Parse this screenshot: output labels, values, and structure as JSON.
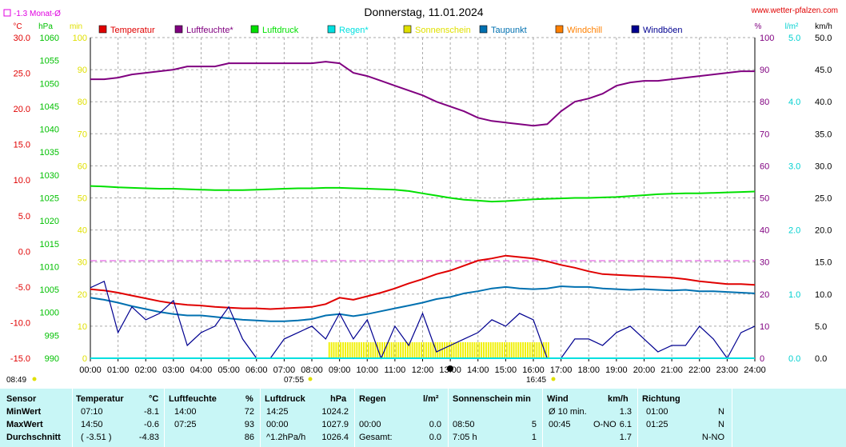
{
  "header": {
    "title": "Donnerstag, 11.01.2024",
    "site": "www.wetter-pfalzen.com",
    "monat_label": "-1.3 Monat-Ø"
  },
  "axis_units": {
    "temp": "°C",
    "hpa": "hPa",
    "min": "min",
    "pct": "%",
    "lqm": "l/m²",
    "kmh": "km/h"
  },
  "legend": [
    {
      "label": "Temperatur",
      "color": "#e00000"
    },
    {
      "label": "Luftfeuchte*",
      "color": "#800080"
    },
    {
      "label": "Luftdruck",
      "color": "#00e000"
    },
    {
      "label": "Regen*",
      "color": "#00e0e0"
    },
    {
      "label": "Sonnenschein",
      "color": "#e0e000"
    },
    {
      "label": "Taupunkt",
      "color": "#0070b0"
    },
    {
      "label": "Windchill",
      "color": "#ff8000"
    },
    {
      "label": "Windböen",
      "color": "#000090"
    }
  ],
  "ticks": {
    "temp": [
      "30.0",
      "25.0",
      "20.0",
      "15.0",
      "10.0",
      "5.0",
      "0.0",
      "-5.0",
      "-10.0",
      "-15.0"
    ],
    "hpa": [
      "1060",
      "1055",
      "1050",
      "1045",
      "1040",
      "1035",
      "1030",
      "1025",
      "1020",
      "1015",
      "1010",
      "1005",
      "1000",
      "995",
      "990"
    ],
    "min": [
      "100",
      "90",
      "80",
      "70",
      "60",
      "50",
      "40",
      "30",
      "20",
      "10",
      "0"
    ],
    "pct": [
      "100",
      "90",
      "80",
      "70",
      "60",
      "50",
      "40",
      "30",
      "20",
      "10",
      "0"
    ],
    "lqm": [
      "5.0",
      "4.0",
      "3.0",
      "2.0",
      "1.0",
      "0.0"
    ],
    "kmh": [
      "50.0",
      "45.0",
      "40.0",
      "35.0",
      "30.0",
      "25.0",
      "20.0",
      "15.0",
      "10.0",
      "5.0",
      "0.0"
    ],
    "x": [
      "00:00",
      "01:00",
      "02:00",
      "03:00",
      "04:00",
      "05:00",
      "06:00",
      "07:00",
      "08:00",
      "09:00",
      "10:00",
      "11:00",
      "12:00",
      "13:00",
      "14:00",
      "15:00",
      "16:00",
      "17:00",
      "18:00",
      "19:00",
      "20:00",
      "21:00",
      "22:00",
      "23:00",
      "24:00"
    ]
  },
  "sun_marks": {
    "left_time": "08:49",
    "sunrise": "07:55",
    "sunset": "16:45"
  },
  "chart_data": {
    "type": "line",
    "title": "Donnerstag, 11.01.2024",
    "x": [
      0,
      0.5,
      1,
      1.5,
      2,
      2.5,
      3,
      3.5,
      4,
      4.5,
      5,
      5.5,
      6,
      6.5,
      7,
      7.5,
      8,
      8.5,
      9,
      9.5,
      10,
      10.5,
      11,
      11.5,
      12,
      12.5,
      13,
      13.5,
      14,
      14.5,
      15,
      15.5,
      16,
      16.5,
      17,
      17.5,
      18,
      18.5,
      19,
      19.5,
      20,
      20.5,
      21,
      21.5,
      22,
      22.5,
      23,
      23.5,
      24
    ],
    "xlim": [
      0,
      24
    ],
    "series": [
      {
        "name": "Temperatur",
        "axis": "°C",
        "ylim": [
          -15,
          30
        ],
        "values": [
          -5.3,
          -5.5,
          -5.8,
          -6.2,
          -6.6,
          -7.0,
          -7.3,
          -7.5,
          -7.6,
          -7.8,
          -7.9,
          -8.0,
          -8.0,
          -8.1,
          -8.0,
          -7.9,
          -7.8,
          -7.4,
          -6.5,
          -6.8,
          -6.3,
          -5.8,
          -5.2,
          -4.5,
          -3.9,
          -3.2,
          -2.7,
          -2.0,
          -1.3,
          -1.0,
          -0.6,
          -0.8,
          -1.0,
          -1.4,
          -1.9,
          -2.3,
          -2.8,
          -3.2,
          -3.3,
          -3.4,
          -3.5,
          -3.6,
          -3.7,
          -3.9,
          -4.2,
          -4.4,
          -4.6,
          -4.6,
          -4.7
        ]
      },
      {
        "name": "Luftfeuchte*",
        "axis": "%",
        "ylim": [
          0,
          100
        ],
        "values": [
          87,
          87,
          87.5,
          88.5,
          89,
          89.5,
          90,
          91,
          91,
          91,
          92,
          92,
          92,
          92,
          92,
          92,
          92,
          92.5,
          92,
          89,
          88,
          86.5,
          85,
          83.5,
          82,
          80,
          78.5,
          77,
          75,
          74,
          73.5,
          73,
          72.5,
          73,
          77,
          80,
          81,
          82.5,
          85,
          86,
          86.5,
          86.5,
          87,
          87.5,
          88,
          88.5,
          89,
          89.5,
          89.5
        ]
      },
      {
        "name": "Luftdruck",
        "axis": "hPa",
        "ylim": [
          990,
          1060
        ],
        "values": [
          1027.6,
          1027.5,
          1027.3,
          1027.2,
          1027.1,
          1027.0,
          1027.0,
          1026.9,
          1026.8,
          1026.7,
          1026.7,
          1026.7,
          1026.8,
          1026.9,
          1027.0,
          1027.1,
          1027.1,
          1027.2,
          1027.2,
          1027.1,
          1027.0,
          1026.9,
          1026.8,
          1026.5,
          1026.0,
          1025.5,
          1025.0,
          1024.6,
          1024.4,
          1024.2,
          1024.3,
          1024.5,
          1024.7,
          1024.8,
          1024.9,
          1025.0,
          1025.0,
          1025.1,
          1025.2,
          1025.4,
          1025.6,
          1025.8,
          1025.9,
          1026.0,
          1026.0,
          1026.1,
          1026.2,
          1026.3,
          1026.4
        ]
      },
      {
        "name": "Taupunkt",
        "axis": "°C",
        "ylim": [
          -15,
          30
        ],
        "values": [
          -6.5,
          -6.8,
          -7.2,
          -7.7,
          -8.1,
          -8.5,
          -8.8,
          -9.0,
          -9.0,
          -9.2,
          -9.4,
          -9.6,
          -9.7,
          -9.8,
          -9.8,
          -9.7,
          -9.5,
          -9.0,
          -8.8,
          -9.1,
          -8.8,
          -8.4,
          -8.0,
          -7.6,
          -7.2,
          -6.7,
          -6.4,
          -5.9,
          -5.6,
          -5.2,
          -5.0,
          -5.2,
          -5.3,
          -5.2,
          -4.9,
          -5.0,
          -5.0,
          -5.2,
          -5.3,
          -5.4,
          -5.3,
          -5.4,
          -5.5,
          -5.4,
          -5.6,
          -5.6,
          -5.7,
          -5.8,
          -5.9
        ]
      },
      {
        "name": "Windböen",
        "axis": "km/h",
        "ylim": [
          0,
          50
        ],
        "values": [
          11,
          12,
          4,
          8,
          6,
          7,
          9,
          2,
          4,
          5,
          8,
          3,
          0,
          0,
          3,
          4,
          5,
          3,
          7,
          3,
          6,
          0,
          5,
          2,
          7,
          1,
          2,
          3,
          4,
          6,
          5,
          7,
          6,
          0,
          0,
          3,
          3,
          2,
          4,
          5,
          3,
          1,
          2,
          2,
          5,
          3,
          0,
          4,
          5
        ]
      },
      {
        "name": "Sonnenschein",
        "axis": "min",
        "ylim": [
          0,
          100
        ],
        "values": [
          0,
          0,
          0,
          0,
          0,
          0,
          0,
          0,
          0,
          5,
          5,
          5,
          5,
          5,
          5,
          5,
          5,
          5,
          5,
          5,
          5,
          5,
          5,
          5,
          5,
          5,
          5,
          5,
          5,
          5,
          5,
          5,
          5,
          0,
          0,
          0,
          0,
          0,
          0,
          0,
          0,
          0,
          0,
          0,
          0,
          0,
          0,
          0,
          0
        ]
      },
      {
        "name": "Regen*",
        "axis": "l/m²",
        "ylim": [
          0,
          5
        ],
        "values": [
          0,
          0,
          0,
          0,
          0,
          0,
          0,
          0,
          0,
          0,
          0,
          0,
          0,
          0,
          0,
          0,
          0,
          0,
          0,
          0,
          0,
          0,
          0,
          0,
          0,
          0,
          0,
          0,
          0,
          0,
          0,
          0,
          0,
          0,
          0,
          0,
          0,
          0,
          0,
          0,
          0,
          0,
          0,
          0,
          0,
          0,
          0,
          0,
          0
        ]
      }
    ],
    "monthly_avg_temp": -1.3,
    "grid": true,
    "legend_position": "top"
  },
  "stats": {
    "headers": {
      "sensor": "Sensor",
      "temp": "Temperatur",
      "temp_unit": "°C",
      "hum": "Luftfeuchte",
      "hum_unit": "%",
      "press": "Luftdruck",
      "press_unit": "hPa",
      "rain": "Regen",
      "rain_unit": "l/m²",
      "sun": "Sonnenschein min",
      "wind": "Wind",
      "wind_unit": "km/h",
      "dir": "Richtung"
    },
    "rows": [
      {
        "label": "MinWert",
        "temp_t": "07:10",
        "temp_v": "-8.1",
        "hum_t": "14:00",
        "hum_v": "72",
        "press_t": "14:25",
        "press_v": "1024.2",
        "rain_t": "",
        "rain_v": "",
        "sun_t": "",
        "sun_v": "",
        "wind_t": "Ø 10 min.",
        "wind_d": "",
        "wind_v": "1.3",
        "dir_t": "01:00",
        "dir_v": "N"
      },
      {
        "label": "MaxWert",
        "temp_t": "14:50",
        "temp_v": "-0.6",
        "hum_t": "07:25",
        "hum_v": "93",
        "press_t": "00:00",
        "press_v": "1027.9",
        "rain_t": "00:00",
        "rain_v": "0.0",
        "sun_t": "08:50",
        "sun_v": "5",
        "wind_t": "00:45",
        "wind_d": "O-NO",
        "wind_v": "6.1",
        "dir_t": "01:25",
        "dir_v": "N"
      },
      {
        "label": "Durchschnitt",
        "temp_t": "( -3.51 )",
        "temp_v": "-4.83",
        "hum_t": "",
        "hum_v": "86",
        "press_t": "^1.2hPa/h",
        "press_v": "1026.4",
        "rain_t": "Gesamt:",
        "rain_v": "0.0",
        "sun_t": "7:05 h",
        "sun_v": "1",
        "wind_t": "",
        "wind_d": "",
        "wind_v": "1.7",
        "dir_t": "",
        "dir_v": "N-NO"
      }
    ]
  }
}
